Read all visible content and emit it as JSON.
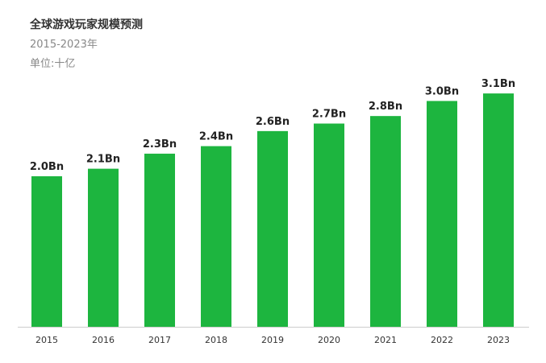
{
  "chart_data": {
    "type": "bar",
    "title": "全球游戏玩家规模预测",
    "subtitle": "2015-2023年",
    "unit_label": "单位:十亿",
    "categories": [
      "2015",
      "2016",
      "2017",
      "2018",
      "2019",
      "2020",
      "2021",
      "2022",
      "2023"
    ],
    "values": [
      2.0,
      2.1,
      2.3,
      2.4,
      2.6,
      2.7,
      2.8,
      3.0,
      3.1
    ],
    "data_labels": [
      "2.0Bn",
      "2.1Bn",
      "2.3Bn",
      "2.4Bn",
      "2.6Bn",
      "2.7Bn",
      "2.8Bn",
      "3.0Bn",
      "3.1Bn"
    ],
    "xlabel": "",
    "ylabel": "",
    "ylim": [
      0,
      3.7
    ],
    "grid": false,
    "legend": "none",
    "bar_color": "#1DB53F",
    "baseline_color": "#CCCCCC"
  }
}
